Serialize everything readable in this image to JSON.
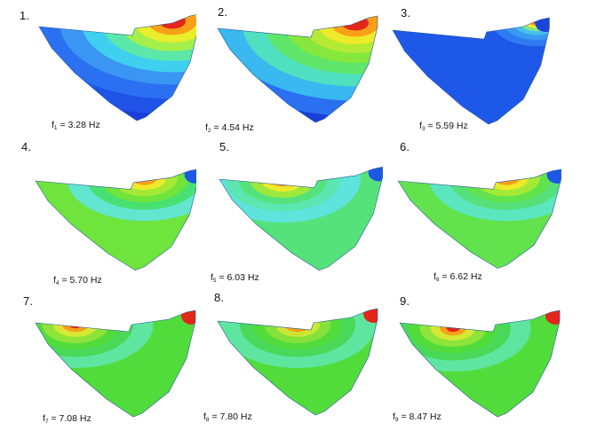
{
  "panels": [
    {
      "number": "1.",
      "sub": "1",
      "freq": " = 3.28 Hz",
      "palette": [
        "#1a3fd8",
        "#1f52e6",
        "#2a70f0",
        "#3a96f2",
        "#3fd0f0",
        "#5ce8a8",
        "#a4ef4c",
        "#e8ee2a",
        "#f8a018",
        "#e4261a"
      ]
    },
    {
      "number": "2.",
      "sub": "2",
      "freq": " = 4.54 Hz",
      "palette": [
        "#1a3fd8",
        "#2a70f0",
        "#3ab8f0",
        "#4ee0c0",
        "#5fe66a",
        "#86e83c",
        "#b4ea34",
        "#eeea2a",
        "#f8a018",
        "#e4261a"
      ]
    },
    {
      "number": "3.",
      "sub": "3",
      "freq": " = 5.59 Hz",
      "palette": [
        "#1a44d8",
        "#1e58e8",
        "#2768ee",
        "#2f7cf2",
        "#3a9af2",
        "#46c0ec",
        "#7de48a",
        "#e8ee2a",
        "#f8a018",
        "#e4261a"
      ]
    },
    {
      "number": "4.",
      "sub": "4",
      "freq": " = 5.70 Hz",
      "palette": [
        "#1e58e6",
        "#3aa6ee",
        "#4ed6e8",
        "#62e6d0",
        "#48e070",
        "#6ee43c",
        "#a4ea34",
        "#eeea2a",
        "#f8a018",
        "#e4261a"
      ]
    },
    {
      "number": "5.",
      "sub": "5",
      "freq": " = 6.03 Hz",
      "palette": [
        "#1e58e6",
        "#2f7ef0",
        "#48c4ec",
        "#5ee4dc",
        "#5ce6b0",
        "#56e27a",
        "#9ee83c",
        "#eeea2a",
        "#f8a018",
        "#e4261a"
      ]
    },
    {
      "number": "6.",
      "sub": "6",
      "freq": " = 6.62 Hz",
      "palette": [
        "#1e58e6",
        "#3aa6ee",
        "#52e0ea",
        "#5ce6c0",
        "#56e07a",
        "#62e24c",
        "#a4ea34",
        "#eeea2a",
        "#f8a018",
        "#e4261a"
      ]
    },
    {
      "number": "7.",
      "sub": "7",
      "freq": " = 7.08 Hz",
      "palette": [
        "#1a44d8",
        "#2f7ef0",
        "#48c4ec",
        "#5ee6a0",
        "#4ad858",
        "#52dc3c",
        "#8ee43a",
        "#d6e834",
        "#f8a018",
        "#e4261a"
      ]
    },
    {
      "number": "8.",
      "sub": "8",
      "freq": " = 7.80 Hz",
      "palette": [
        "#1a44d8",
        "#2f7ef0",
        "#48c4ec",
        "#5ee6a0",
        "#4ad858",
        "#52dc3c",
        "#84e23a",
        "#cce636",
        "#f8a018",
        "#e4261a"
      ]
    },
    {
      "number": "9.",
      "sub": "9",
      "freq": " = 8.47 Hz",
      "palette": [
        "#1a44d8",
        "#2f7ef0",
        "#48c4ec",
        "#5ee6a0",
        "#4ad858",
        "#52dc3c",
        "#8ee43a",
        "#d6e834",
        "#f8a018",
        "#e4261a"
      ]
    }
  ],
  "freq_symbol": "f"
}
